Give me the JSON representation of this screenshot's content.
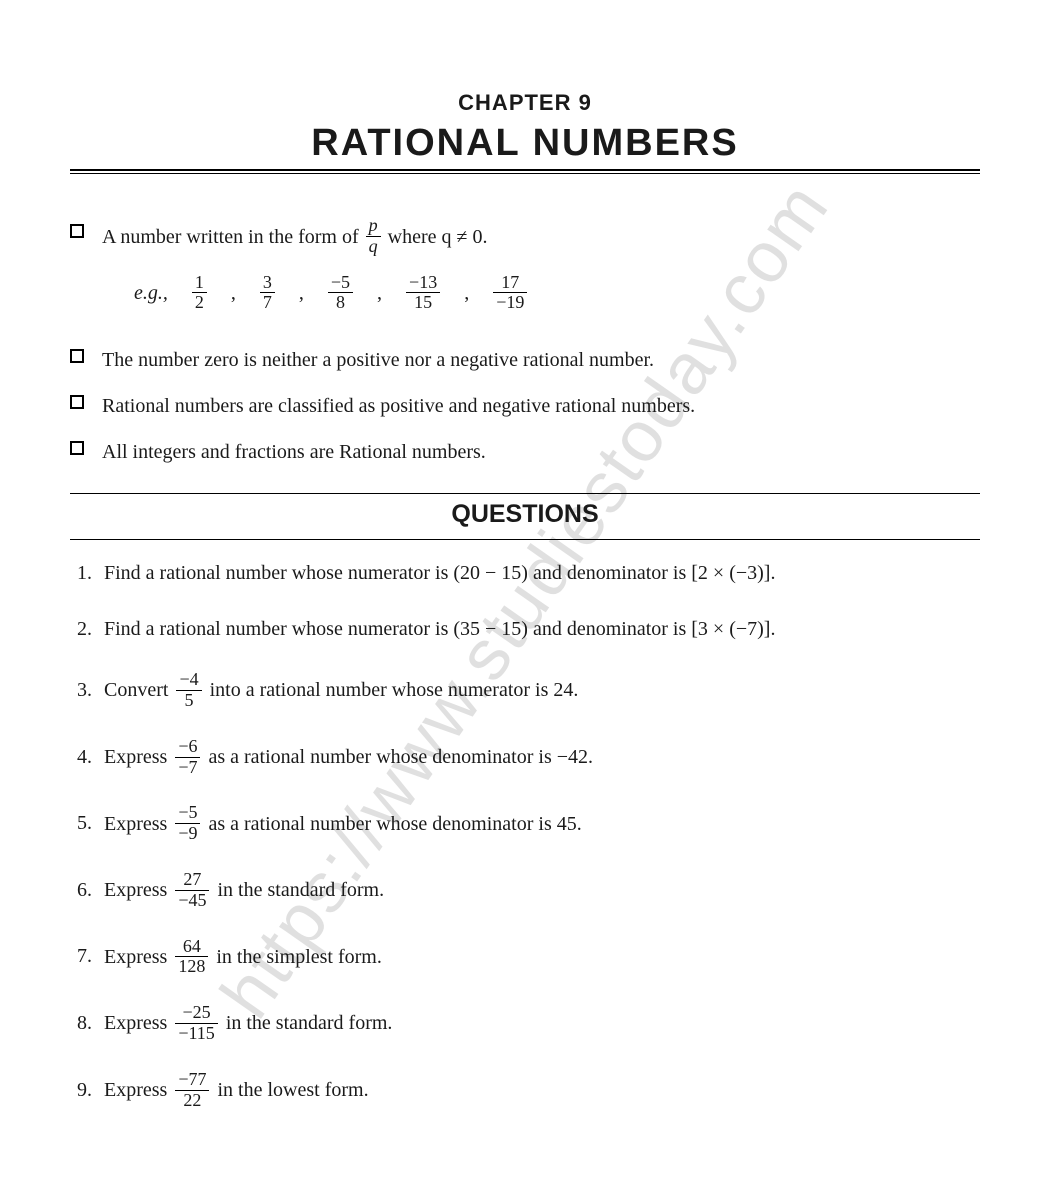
{
  "colors": {
    "text": "#1a1a1a",
    "background": "#ffffff",
    "watermark": "#c8c8c8",
    "rule": "#000000"
  },
  "typography": {
    "body_fontsize": 20,
    "heading_fontsize": 38,
    "chapter_label_fontsize": 22,
    "questions_heading_fontsize": 25,
    "frac_fontsize": 18
  },
  "watermark": "https://www.studiestoday.com",
  "chapter_label": "CHAPTER 9",
  "chapter_title": "RATIONAL NUMBERS",
  "bullets": {
    "b1_pre": "A number written in the form of ",
    "b1_frac": {
      "num": "p",
      "den": "q"
    },
    "b1_post": " where q ≠ 0.",
    "eg_label": "e.g.,",
    "eg_fracs": [
      {
        "num": "1",
        "den": "2"
      },
      {
        "num": "3",
        "den": "7"
      },
      {
        "num": "−5",
        "den": "8"
      },
      {
        "num": "−13",
        "den": "15"
      },
      {
        "num": "17",
        "den": "−19"
      }
    ],
    "b2": "The number zero is neither a positive nor a negative rational number.",
    "b3": "Rational numbers are classified as positive and negative rational numbers.",
    "b4": "All integers and fractions are Rational numbers."
  },
  "questions_heading": "QUESTIONS",
  "questions": {
    "q1": {
      "num": "1.",
      "text": "Find a rational number whose numerator is (20 − 15) and denominator is [2 × (−3)]."
    },
    "q2": {
      "num": "2.",
      "text": "Find a rational number whose numerator is (35 − 15) and denominator is [3 × (−7)]."
    },
    "q3": {
      "num": "3.",
      "pre": "Convert ",
      "frac": {
        "num": "−4",
        "den": "5"
      },
      "post": " into a rational number whose numerator is 24."
    },
    "q4": {
      "num": "4.",
      "pre": "Express ",
      "frac": {
        "num": "−6",
        "den": "−7"
      },
      "post": " as a rational number whose denominator is −42."
    },
    "q5": {
      "num": "5.",
      "pre": "Express ",
      "frac": {
        "num": "−5",
        "den": "−9"
      },
      "post": " as a rational number whose denominator is 45."
    },
    "q6": {
      "num": "6.",
      "pre": "Express ",
      "frac": {
        "num": "27",
        "den": "−45"
      },
      "post": " in the standard form."
    },
    "q7": {
      "num": "7.",
      "pre": "Express ",
      "frac": {
        "num": "64",
        "den": "128"
      },
      "post": " in the simplest form."
    },
    "q8": {
      "num": "8.",
      "pre": "Express ",
      "frac": {
        "num": "−25",
        "den": "−115"
      },
      "post": " in the standard form."
    },
    "q9": {
      "num": "9.",
      "pre": "Express ",
      "frac": {
        "num": "−77",
        "den": "22"
      },
      "post": " in the lowest form."
    }
  }
}
